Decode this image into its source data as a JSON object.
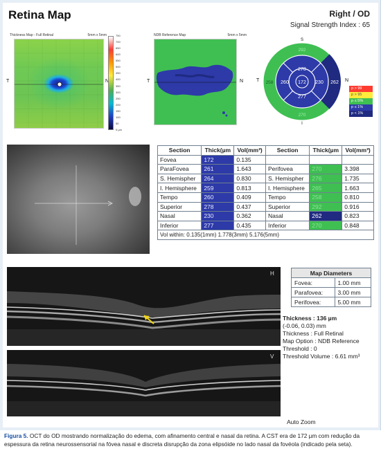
{
  "report": {
    "title": "Retina Map",
    "eye": "Right / OD",
    "signal_strength": "Signal Strength Index : 65"
  },
  "thickness_map": {
    "title": "Thickness Map - Full Retinal",
    "scale": "5mm x 5mm",
    "left_letter": "T",
    "right_letter": "N",
    "colorbar_ticks": [
      "750",
      "700",
      "650",
      "600",
      "550",
      "500",
      "450",
      "400",
      "350",
      "300",
      "250",
      "200",
      "150",
      "100",
      "50",
      "0 µm"
    ]
  },
  "ndb_map": {
    "title": "NDB Reference Map",
    "scale": "5mm x 5mm",
    "left_letter": "T",
    "right_letter": "N"
  },
  "etdrs": {
    "s": "S",
    "i": "I",
    "t": "T",
    "n": "N",
    "center": "172",
    "inner_superior": "278",
    "inner_temporal": "260",
    "inner_nasal": "230",
    "inner_inferior": "277",
    "outer_superior": "292",
    "outer_temporal": "258",
    "outer_nasal": "262",
    "outer_inferior": "270"
  },
  "legend": [
    {
      "label": "p > 99",
      "color": "#ff3b30",
      "text_color": "#ffffff"
    },
    {
      "label": "p > 95",
      "color": "#ffeb3b",
      "text_color": "#555555"
    },
    {
      "label": "p ≤ 5%",
      "color": "#3fbf52",
      "text_color": "#ffffff"
    },
    {
      "label": "p ≤ 1%",
      "color": "#2d3aa8",
      "text_color": "#ffffff"
    },
    {
      "label": "p < 1%",
      "color": "#1f2a80",
      "text_color": "#ffffff"
    }
  ],
  "section_table": {
    "headers": [
      "Section",
      "Thick(µm",
      "Vol(mm³)",
      "Section",
      "Thick(µm",
      "Vol(mm³)"
    ],
    "rows": [
      {
        "s1": "Fovea",
        "t1": "172",
        "v1": "0.135",
        "s2": "",
        "t2": "",
        "v2": ""
      },
      {
        "s1": "ParaFovea",
        "t1": "261",
        "v1": "1.643",
        "s2": "Perifovea",
        "t2": "270",
        "v2": "3.398"
      },
      {
        "s1": "S. Hemispher",
        "t1": "264",
        "v1": "0.830",
        "s2": "S. Hemispher",
        "t2": "276",
        "v2": "1.735"
      },
      {
        "s1": "I. Hemisphere",
        "t1": "259",
        "v1": "0.813",
        "s2": "I. Hemisphere",
        "t2": "265",
        "v2": "1.663"
      },
      {
        "s1": "Tempo",
        "t1": "260",
        "v1": "0.409",
        "s2": "Tempo",
        "t2": "258",
        "v2": "0.810"
      },
      {
        "s1": "Superior",
        "t1": "278",
        "v1": "0.437",
        "s2": "Superior",
        "t2": "292",
        "v2": "0.916"
      },
      {
        "s1": "Nasal",
        "t1": "230",
        "v1": "0.362",
        "s2": "Nasal",
        "t2": "262",
        "v2": "0.823"
      },
      {
        "s1": "Inferior",
        "t1": "277",
        "v1": "0.435",
        "s2": "Inferior",
        "t2": "270",
        "v2": "0.848"
      }
    ],
    "volume_row": "Vol within: 0.135(1mm) 1.778(3mm) 5.176(5mm)"
  },
  "oct": {
    "top_marker": "H",
    "bottom_marker": "V"
  },
  "map_diameters": {
    "title": "Map Diameters",
    "rows": [
      {
        "label": "Fovea:",
        "value": "1.00 mm"
      },
      {
        "label": "Parafovea:",
        "value": "3.00 mm"
      },
      {
        "label": "Perifovea:",
        "value": "5.00 mm"
      }
    ]
  },
  "info": {
    "thickness": "Thickness : 136 µm",
    "coords": "(-0.06, 0.03) mm",
    "thickness_type": "Thickness : Full Retinal",
    "map_option": "Map Option : NDB Reference",
    "threshold": "Threshold : 0",
    "threshold_volume": "Threshold Volume : 6.61 mm³",
    "auto_zoom": "Auto Zoom"
  },
  "caption": {
    "figure": "Figura 5.",
    "text": " OCT do OD mostrando normalização do edema, com afinamento central e nasal da retina. A CST era de 172 µm com redução da espessura da retina neurossensorial na fóvea nasal e discreta disrupção da zona elipsóide no lado nasal da fovéola (indicado pela seta)."
  }
}
